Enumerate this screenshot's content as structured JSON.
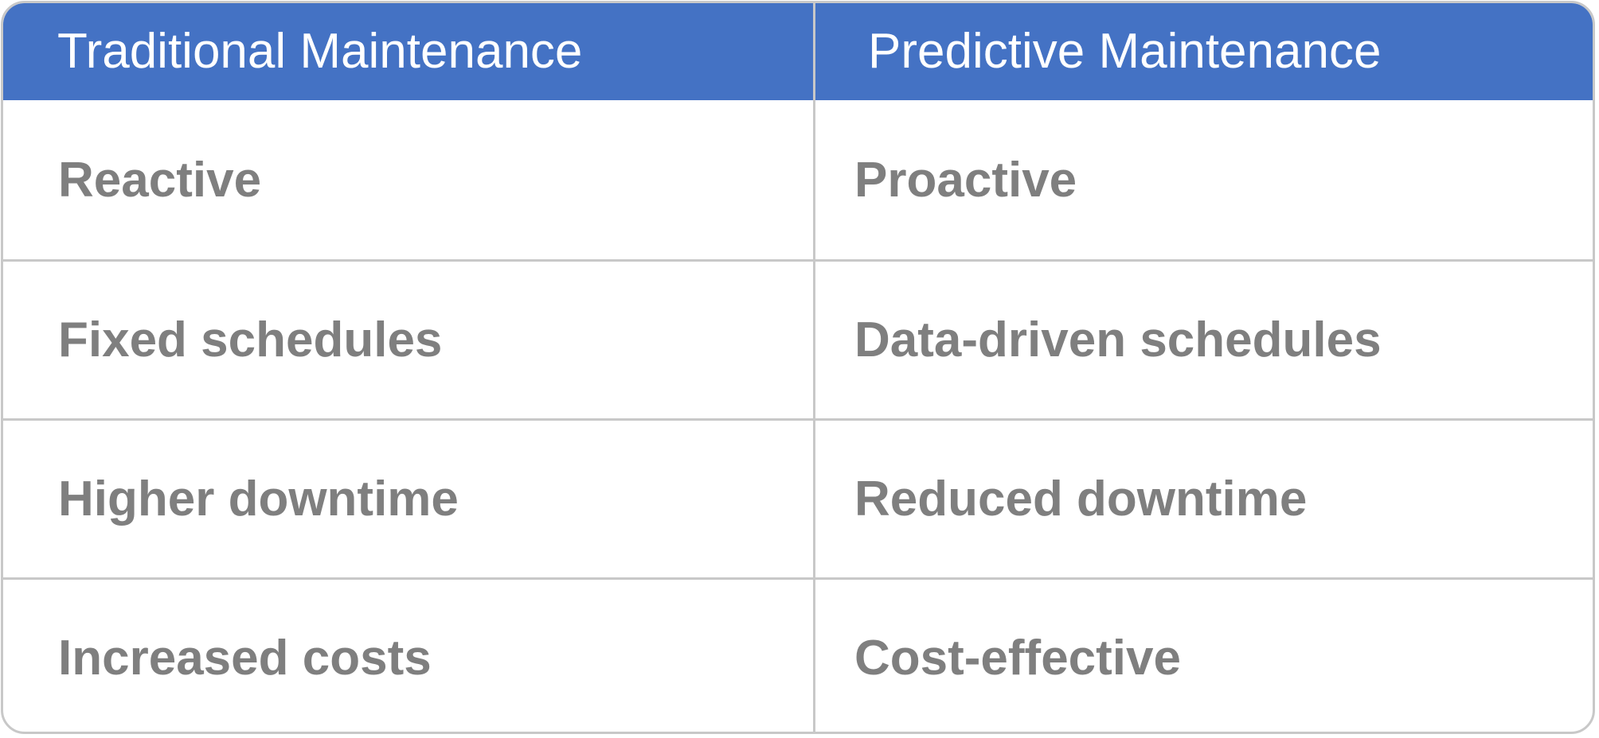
{
  "table": {
    "headers": [
      "Traditional Maintenance",
      "Predictive Maintenance"
    ],
    "rows": [
      [
        "Reactive",
        "Proactive"
      ],
      [
        "Fixed schedules",
        "Data-driven schedules"
      ],
      [
        "Higher downtime",
        "Reduced downtime"
      ],
      [
        "Increased costs",
        "Cost-effective"
      ]
    ],
    "colors": {
      "header_background": "#4472c4",
      "header_text": "#ffffff",
      "body_text": "#7f7f7f",
      "grid_lines": "#c8c8c8"
    }
  }
}
